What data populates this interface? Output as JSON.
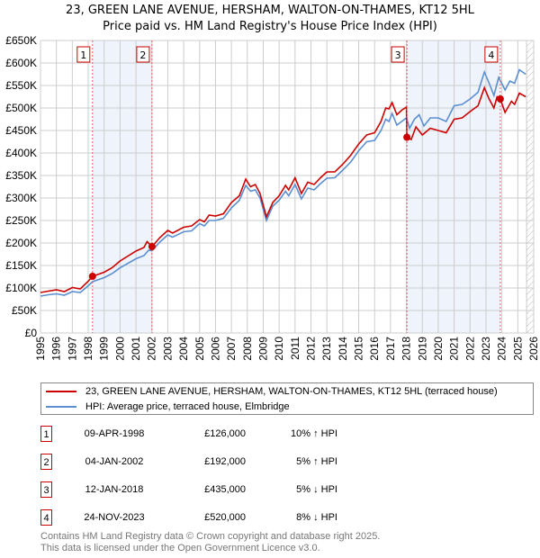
{
  "chart_data": {
    "type": "line",
    "title": "23, GREEN LANE AVENUE, HERSHAM, WALTON-ON-THAMES, KT12 5HL",
    "subtitle": "Price paid vs. HM Land Registry's House Price Index (HPI)",
    "xlim": [
      1995,
      2026
    ],
    "ylim": [
      0,
      650000
    ],
    "yticks": [
      "£0",
      "£50K",
      "£100K",
      "£150K",
      "£200K",
      "£250K",
      "£300K",
      "£350K",
      "£400K",
      "£450K",
      "£500K",
      "£550K",
      "£600K",
      "£650K"
    ],
    "xticks": [
      "1995",
      "1996",
      "1997",
      "1998",
      "1999",
      "2000",
      "2001",
      "2002",
      "2003",
      "2004",
      "2005",
      "2006",
      "2007",
      "2008",
      "2009",
      "2010",
      "2011",
      "2012",
      "2013",
      "2014",
      "2015",
      "2016",
      "2017",
      "2018",
      "2019",
      "2020",
      "2021",
      "2022",
      "2023",
      "2024",
      "2025",
      "2026"
    ],
    "colors": {
      "property": "#cc0000",
      "hpi": "#5b8fd0",
      "shade": "#eef3fc"
    },
    "series": [
      {
        "name": "23, GREEN LANE AVENUE, HERSHAM, WALTON-ON-THAMES, KT12 5HL (terraced house)",
        "points": [
          [
            1995,
            90
          ],
          [
            1995.5,
            93
          ],
          [
            1996,
            96
          ],
          [
            1996.5,
            92
          ],
          [
            1997,
            101
          ],
          [
            1997.5,
            98
          ],
          [
            1998,
            115
          ],
          [
            1998.27,
            126
          ],
          [
            1999,
            135
          ],
          [
            1999.5,
            145
          ],
          [
            2000,
            160
          ],
          [
            2001,
            182
          ],
          [
            2001.5,
            190
          ],
          [
            2001.7,
            203
          ],
          [
            2002.01,
            192
          ],
          [
            2002.5,
            212
          ],
          [
            2003,
            228
          ],
          [
            2003.3,
            222
          ],
          [
            2004,
            235
          ],
          [
            2004.5,
            238
          ],
          [
            2005,
            252
          ],
          [
            2005.3,
            247
          ],
          [
            2005.6,
            262
          ],
          [
            2006,
            260
          ],
          [
            2006.5,
            265
          ],
          [
            2007,
            290
          ],
          [
            2007.5,
            305
          ],
          [
            2007.9,
            342
          ],
          [
            2008.2,
            325
          ],
          [
            2008.5,
            330
          ],
          [
            2008.8,
            310
          ],
          [
            2009.2,
            258
          ],
          [
            2009.6,
            290
          ],
          [
            2010,
            305
          ],
          [
            2010.4,
            328
          ],
          [
            2010.6,
            318
          ],
          [
            2011,
            345
          ],
          [
            2011.4,
            310
          ],
          [
            2011.8,
            335
          ],
          [
            2012.2,
            330
          ],
          [
            2012.6,
            345
          ],
          [
            2013,
            358
          ],
          [
            2013.5,
            358
          ],
          [
            2014,
            375
          ],
          [
            2014.5,
            395
          ],
          [
            2015,
            420
          ],
          [
            2015.5,
            440
          ],
          [
            2016,
            445
          ],
          [
            2016.4,
            470
          ],
          [
            2016.7,
            500
          ],
          [
            2016.9,
            498
          ],
          [
            2017.1,
            512
          ],
          [
            2017.4,
            485
          ],
          [
            2017.7,
            495
          ],
          [
            2018,
            502
          ],
          [
            2018.03,
            435
          ],
          [
            2018.3,
            430
          ],
          [
            2018.6,
            458
          ],
          [
            2019,
            440
          ],
          [
            2019.5,
            455
          ],
          [
            2020,
            450
          ],
          [
            2020.5,
            445
          ],
          [
            2021,
            475
          ],
          [
            2021.5,
            478
          ],
          [
            2022,
            492
          ],
          [
            2022.5,
            505
          ],
          [
            2022.9,
            545
          ],
          [
            2023.2,
            520
          ],
          [
            2023.5,
            500
          ],
          [
            2023.7,
            525
          ],
          [
            2023.9,
            520
          ],
          [
            2024.2,
            490
          ],
          [
            2024.6,
            515
          ],
          [
            2024.8,
            508
          ],
          [
            2025.1,
            533
          ],
          [
            2025.5,
            525
          ]
        ]
      },
      {
        "name": "HPI: Average price, terraced house, Elmbridge",
        "points": [
          [
            1995,
            82
          ],
          [
            1995.5,
            85
          ],
          [
            1996,
            87
          ],
          [
            1996.5,
            84
          ],
          [
            1997,
            92
          ],
          [
            1997.5,
            90
          ],
          [
            1998,
            105
          ],
          [
            1998.27,
            114
          ],
          [
            1999,
            123
          ],
          [
            1999.5,
            132
          ],
          [
            2000,
            145
          ],
          [
            2001,
            165
          ],
          [
            2001.5,
            172
          ],
          [
            2001.8,
            184
          ],
          [
            2002.01,
            183
          ],
          [
            2002.5,
            202
          ],
          [
            2003,
            218
          ],
          [
            2003.3,
            213
          ],
          [
            2004,
            225
          ],
          [
            2004.5,
            227
          ],
          [
            2005,
            243
          ],
          [
            2005.3,
            238
          ],
          [
            2005.6,
            250
          ],
          [
            2006,
            250
          ],
          [
            2006.5,
            255
          ],
          [
            2007,
            278
          ],
          [
            2007.5,
            295
          ],
          [
            2007.9,
            328
          ],
          [
            2008.2,
            315
          ],
          [
            2008.5,
            318
          ],
          [
            2008.8,
            300
          ],
          [
            2009.2,
            250
          ],
          [
            2009.6,
            282
          ],
          [
            2010,
            295
          ],
          [
            2010.4,
            315
          ],
          [
            2010.6,
            305
          ],
          [
            2011,
            330
          ],
          [
            2011.4,
            298
          ],
          [
            2011.8,
            322
          ],
          [
            2012.2,
            318
          ],
          [
            2012.6,
            332
          ],
          [
            2013,
            344
          ],
          [
            2013.5,
            345
          ],
          [
            2014,
            362
          ],
          [
            2014.5,
            380
          ],
          [
            2015,
            405
          ],
          [
            2015.5,
            425
          ],
          [
            2016,
            428
          ],
          [
            2016.4,
            450
          ],
          [
            2016.7,
            475
          ],
          [
            2016.9,
            470
          ],
          [
            2017.1,
            488
          ],
          [
            2017.4,
            462
          ],
          [
            2017.7,
            470
          ],
          [
            2018,
            478
          ],
          [
            2018.2,
            455
          ],
          [
            2018.5,
            475
          ],
          [
            2018.8,
            485
          ],
          [
            2019.1,
            460
          ],
          [
            2019.5,
            478
          ],
          [
            2020,
            478
          ],
          [
            2020.5,
            470
          ],
          [
            2021,
            505
          ],
          [
            2021.5,
            508
          ],
          [
            2022,
            520
          ],
          [
            2022.5,
            535
          ],
          [
            2022.9,
            580
          ],
          [
            2023.2,
            555
          ],
          [
            2023.5,
            528
          ],
          [
            2023.8,
            568
          ],
          [
            2024.2,
            540
          ],
          [
            2024.5,
            560
          ],
          [
            2024.8,
            555
          ],
          [
            2025.1,
            585
          ],
          [
            2025.5,
            575
          ]
        ]
      }
    ],
    "sales": [
      {
        "label": "1",
        "year": 1998.27,
        "price": 126
      },
      {
        "label": "2",
        "year": 2002.01,
        "price": 192
      },
      {
        "label": "3",
        "year": 2018.03,
        "price": 435
      },
      {
        "label": "4",
        "year": 2023.9,
        "price": 520
      }
    ],
    "shaded": [
      [
        1998.27,
        2002.01
      ],
      [
        2018.03,
        2023.9
      ]
    ],
    "forecast_start": 2025.55
  },
  "legend": {
    "property": "23, GREEN LANE AVENUE, HERSHAM, WALTON-ON-THAMES, KT12 5HL (terraced house)",
    "hpi": "HPI: Average price, terraced house, Elmbridge"
  },
  "table": [
    {
      "num": "1",
      "date": "09-APR-1998",
      "price": "£126,000",
      "hpi": "10% ↑ HPI"
    },
    {
      "num": "2",
      "date": "04-JAN-2002",
      "price": "£192,000",
      "hpi": "5% ↑ HPI"
    },
    {
      "num": "3",
      "date": "12-JAN-2018",
      "price": "£435,000",
      "hpi": "5% ↓ HPI"
    },
    {
      "num": "4",
      "date": "24-NOV-2023",
      "price": "£520,000",
      "hpi": "8% ↓ HPI"
    }
  ],
  "footer": {
    "line1": "Contains HM Land Registry data © Crown copyright and database right 2025.",
    "line2": "This data is licensed under the Open Government Licence v3.0."
  }
}
